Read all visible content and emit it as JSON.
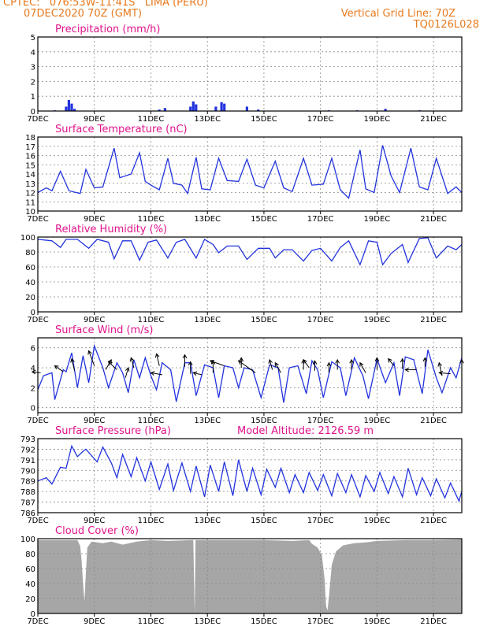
{
  "header": {
    "line1": "CPTEC:   076:53W-11:41S   LIMA (PERU)",
    "line2": "07DEC2020 70Z (GMT)",
    "right1": "Vertical Grid Line: 70Z",
    "right2": "TQ0126L028"
  },
  "colors": {
    "header": "#e87a1e",
    "title": "#e0148c",
    "series": "#2233dd",
    "cloud": "#a6a6a6",
    "grid": "#888888"
  },
  "date_ticks": [
    "7DEC",
    "9DEC",
    "11DEC",
    "13DEC",
    "15DEC",
    "17DEC",
    "19DEC",
    "21DEC"
  ],
  "chart_data": [
    {
      "id": "precip",
      "type": "bar",
      "title": "Precipitation (mm/h)",
      "x_unit": "days since 7DEC 70Z",
      "xlim": [
        0,
        15
      ],
      "ylim": [
        0,
        5
      ],
      "yticks": [
        "0",
        "1",
        "2",
        "3",
        "4",
        "5"
      ],
      "bars": [
        [
          0.6,
          0.05
        ],
        [
          1.0,
          0.3
        ],
        [
          1.1,
          0.75
        ],
        [
          1.2,
          0.5
        ],
        [
          1.3,
          0.15
        ],
        [
          4.3,
          0.1
        ],
        [
          4.5,
          0.2
        ],
        [
          5.4,
          0.3
        ],
        [
          5.5,
          0.65
        ],
        [
          5.6,
          0.45
        ],
        [
          6.3,
          0.3
        ],
        [
          6.5,
          0.6
        ],
        [
          6.6,
          0.5
        ],
        [
          7.4,
          0.3
        ],
        [
          7.8,
          0.1
        ],
        [
          10.3,
          0.05
        ],
        [
          11.3,
          0.05
        ],
        [
          12.3,
          0.15
        ],
        [
          13.5,
          0.05
        ]
      ]
    },
    {
      "id": "temp",
      "type": "line",
      "title": "Surface Temperature (nC)",
      "xlim": [
        0,
        15
      ],
      "ylim": [
        10,
        18
      ],
      "yticks": [
        "10",
        "11",
        "12",
        "13",
        "14",
        "15",
        "16",
        "17",
        "18"
      ],
      "points": [
        [
          0,
          12
        ],
        [
          0.3,
          12.5
        ],
        [
          0.5,
          12.2
        ],
        [
          0.8,
          14.3
        ],
        [
          1.1,
          12.2
        ],
        [
          1.5,
          11.9
        ],
        [
          1.7,
          14.5
        ],
        [
          2.0,
          12.5
        ],
        [
          2.3,
          12.6
        ],
        [
          2.7,
          16.8
        ],
        [
          2.9,
          13.6
        ],
        [
          3.3,
          14.0
        ],
        [
          3.6,
          16.3
        ],
        [
          3.8,
          13.2
        ],
        [
          4.0,
          12.8
        ],
        [
          4.3,
          12.3
        ],
        [
          4.6,
          15.7
        ],
        [
          4.8,
          13.0
        ],
        [
          5.1,
          12.8
        ],
        [
          5.3,
          11.9
        ],
        [
          5.6,
          15.8
        ],
        [
          5.8,
          12.4
        ],
        [
          6.1,
          12.3
        ],
        [
          6.4,
          15.7
        ],
        [
          6.7,
          13.3
        ],
        [
          7.1,
          13.2
        ],
        [
          7.4,
          15.6
        ],
        [
          7.7,
          12.8
        ],
        [
          8.0,
          12.5
        ],
        [
          8.4,
          15.4
        ],
        [
          8.7,
          12.5
        ],
        [
          9.0,
          12.1
        ],
        [
          9.4,
          15.7
        ],
        [
          9.7,
          12.8
        ],
        [
          10.1,
          12.9
        ],
        [
          10.4,
          15.7
        ],
        [
          10.7,
          12.3
        ],
        [
          11.0,
          11.4
        ],
        [
          11.4,
          16.6
        ],
        [
          11.6,
          12.4
        ],
        [
          11.9,
          12.0
        ],
        [
          12.2,
          17.1
        ],
        [
          12.5,
          13.8
        ],
        [
          12.8,
          12.0
        ],
        [
          13.2,
          16.8
        ],
        [
          13.5,
          12.6
        ],
        [
          13.8,
          12.3
        ],
        [
          14.1,
          15.7
        ],
        [
          14.5,
          11.9
        ],
        [
          14.8,
          12.6
        ],
        [
          15.0,
          12.0
        ]
      ]
    },
    {
      "id": "rh",
      "type": "line",
      "title": "Relative Humidity (%)",
      "xlim": [
        0,
        15
      ],
      "ylim": [
        0,
        100
      ],
      "yticks": [
        "0",
        "20",
        "40",
        "60",
        "80",
        "100"
      ],
      "points": [
        [
          0,
          97
        ],
        [
          0.5,
          95
        ],
        [
          0.8,
          86
        ],
        [
          1.0,
          97
        ],
        [
          1.4,
          97
        ],
        [
          1.8,
          85
        ],
        [
          2.1,
          97
        ],
        [
          2.5,
          93
        ],
        [
          2.7,
          71
        ],
        [
          3.0,
          95
        ],
        [
          3.3,
          95
        ],
        [
          3.6,
          69
        ],
        [
          3.9,
          93
        ],
        [
          4.2,
          96
        ],
        [
          4.6,
          72
        ],
        [
          4.9,
          93
        ],
        [
          5.2,
          97
        ],
        [
          5.6,
          72
        ],
        [
          5.9,
          97
        ],
        [
          6.2,
          90
        ],
        [
          6.4,
          79
        ],
        [
          6.7,
          88
        ],
        [
          7.1,
          88
        ],
        [
          7.4,
          70
        ],
        [
          7.8,
          85
        ],
        [
          8.2,
          85
        ],
        [
          8.4,
          72
        ],
        [
          8.7,
          83
        ],
        [
          9.0,
          83
        ],
        [
          9.4,
          68
        ],
        [
          9.7,
          82
        ],
        [
          10.0,
          85
        ],
        [
          10.4,
          68
        ],
        [
          10.7,
          86
        ],
        [
          11.0,
          95
        ],
        [
          11.4,
          63
        ],
        [
          11.7,
          95
        ],
        [
          12.0,
          93
        ],
        [
          12.2,
          63
        ],
        [
          12.5,
          78
        ],
        [
          12.9,
          90
        ],
        [
          13.1,
          66
        ],
        [
          13.5,
          98
        ],
        [
          13.8,
          99
        ],
        [
          14.1,
          72
        ],
        [
          14.5,
          88
        ],
        [
          14.8,
          83
        ],
        [
          15.0,
          90
        ]
      ]
    },
    {
      "id": "wind",
      "type": "line",
      "title": "Surface Wind (m/s)",
      "xlim": [
        0,
        15
      ],
      "ylim": [
        -0.5,
        7
      ],
      "yticks": [
        "0",
        "2",
        "4",
        "6"
      ],
      "points": [
        [
          0,
          1.8
        ],
        [
          0.2,
          3.2
        ],
        [
          0.5,
          3.5
        ],
        [
          0.6,
          0.8
        ],
        [
          0.9,
          3.8
        ],
        [
          1.0,
          3.6
        ],
        [
          1.2,
          5.5
        ],
        [
          1.4,
          2.0
        ],
        [
          1.6,
          5.2
        ],
        [
          1.8,
          2.5
        ],
        [
          2.0,
          6.2
        ],
        [
          2.3,
          4.0
        ],
        [
          2.5,
          2.0
        ],
        [
          2.8,
          4.5
        ],
        [
          3.0,
          3.5
        ],
        [
          3.2,
          1.5
        ],
        [
          3.4,
          4.8
        ],
        [
          3.6,
          3.0
        ],
        [
          3.8,
          5.0
        ],
        [
          4.0,
          3.2
        ],
        [
          4.2,
          1.8
        ],
        [
          4.4,
          4.5
        ],
        [
          4.7,
          3.8
        ],
        [
          4.9,
          0.6
        ],
        [
          5.2,
          4.5
        ],
        [
          5.4,
          4.5
        ],
        [
          5.6,
          1.2
        ],
        [
          5.9,
          4.3
        ],
        [
          6.2,
          4.0
        ],
        [
          6.4,
          1.0
        ],
        [
          6.6,
          4.2
        ],
        [
          6.9,
          4.0
        ],
        [
          7.1,
          2.0
        ],
        [
          7.3,
          4.0
        ],
        [
          7.6,
          3.8
        ],
        [
          7.9,
          1.0
        ],
        [
          8.2,
          4.3
        ],
        [
          8.5,
          4.0
        ],
        [
          8.7,
          0.5
        ],
        [
          8.9,
          4.0
        ],
        [
          9.2,
          4.2
        ],
        [
          9.5,
          1.4
        ],
        [
          9.7,
          4.7
        ],
        [
          9.9,
          3.8
        ],
        [
          10.1,
          1.0
        ],
        [
          10.4,
          4.6
        ],
        [
          10.7,
          4.0
        ],
        [
          10.9,
          1.2
        ],
        [
          11.2,
          5.0
        ],
        [
          11.5,
          3.2
        ],
        [
          11.7,
          0.9
        ],
        [
          12.0,
          4.9
        ],
        [
          12.3,
          2.5
        ],
        [
          12.6,
          4.5
        ],
        [
          12.8,
          1.2
        ],
        [
          13.0,
          5.1
        ],
        [
          13.3,
          4.8
        ],
        [
          13.6,
          1.4
        ],
        [
          13.8,
          5.8
        ],
        [
          14.1,
          3.0
        ],
        [
          14.3,
          1.5
        ],
        [
          14.6,
          4.0
        ],
        [
          14.8,
          3.0
        ],
        [
          15.0,
          5.0
        ]
      ],
      "arrows": [
        [
          0.1,
          3.5,
          -0.3,
          0.1
        ],
        [
          0.9,
          3.6,
          -0.3,
          0.6
        ],
        [
          1.3,
          3.7,
          -0.1,
          1.2
        ],
        [
          2.0,
          4.2,
          -0.2,
          1.5
        ],
        [
          2.4,
          3.8,
          0.2,
          1.0
        ],
        [
          2.8,
          3.8,
          -0.3,
          0.8
        ],
        [
          3.1,
          3.0,
          0.1,
          1.0
        ],
        [
          3.4,
          4.0,
          -0.1,
          1.0
        ],
        [
          4.4,
          3.3,
          -0.4,
          0.2
        ],
        [
          4.3,
          4.2,
          -0.1,
          1.2
        ],
        [
          5.2,
          4.1,
          0.0,
          1.2
        ],
        [
          5.4,
          3.4,
          0.0,
          1.2
        ],
        [
          5.8,
          3.3,
          -0.3,
          0.2
        ],
        [
          6.2,
          3.5,
          0.0,
          1.2
        ],
        [
          6.6,
          4.2,
          -0.5,
          0.5
        ],
        [
          7.2,
          4.0,
          0.0,
          1.0
        ],
        [
          7.7,
          3.5,
          -0.6,
          1.2
        ],
        [
          8.3,
          3.8,
          -0.1,
          1.0
        ],
        [
          8.6,
          3.5,
          -0.2,
          1.0
        ],
        [
          9.4,
          3.8,
          0.0,
          1.0
        ],
        [
          9.6,
          4.0,
          -0.2,
          0.8
        ],
        [
          9.8,
          3.7,
          0.0,
          1.0
        ],
        [
          10.3,
          3.5,
          0.0,
          1.0
        ],
        [
          10.6,
          3.8,
          0.0,
          1.0
        ],
        [
          11.1,
          3.8,
          0.0,
          1.0
        ],
        [
          11.6,
          3.5,
          -0.2,
          1.0
        ],
        [
          12.0,
          3.8,
          0.0,
          1.2
        ],
        [
          12.6,
          4.2,
          -0.2,
          0.7
        ],
        [
          12.9,
          3.9,
          0.0,
          1.0
        ],
        [
          13.4,
          3.8,
          -0.4,
          0.0
        ],
        [
          13.7,
          4.1,
          0.0,
          0.9
        ],
        [
          14.3,
          3.2,
          -0.1,
          1.3
        ],
        [
          14.6,
          3.4,
          -0.4,
          0.1
        ],
        [
          15.0,
          3.8,
          0.0,
          1.0
        ]
      ]
    },
    {
      "id": "pres",
      "type": "line",
      "title": "Surface Pressure (hPa)",
      "note": "Model Altitude: 2126.59 m",
      "xlim": [
        0,
        15
      ],
      "ylim": [
        786,
        793
      ],
      "yticks": [
        "786",
        "787",
        "788",
        "789",
        "790",
        "791",
        "792",
        "793"
      ],
      "points": [
        [
          0,
          789.0
        ],
        [
          0.3,
          789.3
        ],
        [
          0.5,
          788.7
        ],
        [
          0.8,
          790.3
        ],
        [
          1.0,
          790.2
        ],
        [
          1.2,
          792.3
        ],
        [
          1.4,
          791.3
        ],
        [
          1.6,
          791.8
        ],
        [
          1.7,
          792.0
        ],
        [
          1.9,
          791.4
        ],
        [
          2.1,
          790.8
        ],
        [
          2.3,
          792.2
        ],
        [
          2.6,
          790.7
        ],
        [
          2.8,
          789.3
        ],
        [
          3.0,
          791.5
        ],
        [
          3.3,
          789.4
        ],
        [
          3.5,
          791.2
        ],
        [
          3.8,
          789.0
        ],
        [
          4.0,
          790.8
        ],
        [
          4.3,
          788.2
        ],
        [
          4.6,
          790.6
        ],
        [
          4.8,
          788.1
        ],
        [
          5.1,
          790.7
        ],
        [
          5.4,
          788.0
        ],
        [
          5.6,
          790.4
        ],
        [
          5.9,
          787.5
        ],
        [
          6.1,
          790.5
        ],
        [
          6.4,
          788.0
        ],
        [
          6.6,
          790.8
        ],
        [
          6.9,
          787.6
        ],
        [
          7.1,
          791.0
        ],
        [
          7.4,
          788.0
        ],
        [
          7.6,
          790.2
        ],
        [
          7.9,
          787.7
        ],
        [
          8.1,
          790.1
        ],
        [
          8.4,
          788.4
        ],
        [
          8.6,
          790.2
        ],
        [
          8.9,
          787.9
        ],
        [
          9.1,
          789.6
        ],
        [
          9.4,
          787.9
        ],
        [
          9.6,
          789.8
        ],
        [
          9.9,
          788.1
        ],
        [
          10.1,
          789.6
        ],
        [
          10.4,
          787.6
        ],
        [
          10.6,
          789.7
        ],
        [
          10.9,
          787.9
        ],
        [
          11.1,
          789.6
        ],
        [
          11.4,
          787.5
        ],
        [
          11.6,
          789.5
        ],
        [
          11.9,
          788.0
        ],
        [
          12.1,
          789.8
        ],
        [
          12.4,
          787.8
        ],
        [
          12.6,
          789.4
        ],
        [
          12.9,
          787.5
        ],
        [
          13.1,
          790.2
        ],
        [
          13.4,
          787.7
        ],
        [
          13.6,
          789.3
        ],
        [
          13.9,
          787.6
        ],
        [
          14.1,
          789.2
        ],
        [
          14.4,
          787.4
        ],
        [
          14.6,
          788.8
        ],
        [
          14.9,
          787.1
        ],
        [
          15.0,
          788.0
        ]
      ]
    },
    {
      "id": "cloud",
      "type": "area",
      "title": "Cloud Cover (%)",
      "xlim": [
        0,
        15
      ],
      "ylim": [
        0,
        100
      ],
      "yticks": [
        "0",
        "20",
        "40",
        "60",
        "80",
        "100"
      ],
      "points": [
        [
          0,
          98
        ],
        [
          1.4,
          98
        ],
        [
          1.5,
          90
        ],
        [
          1.55,
          70
        ],
        [
          1.6,
          40
        ],
        [
          1.65,
          16
        ],
        [
          1.7,
          55
        ],
        [
          1.75,
          88
        ],
        [
          1.9,
          96
        ],
        [
          2.3,
          94
        ],
        [
          2.6,
          96
        ],
        [
          3.0,
          92
        ],
        [
          3.5,
          96
        ],
        [
          4.0,
          98
        ],
        [
          4.6,
          97
        ],
        [
          5.4,
          98
        ],
        [
          5.5,
          98
        ],
        [
          5.55,
          0
        ],
        [
          5.58,
          98
        ],
        [
          6.0,
          98
        ],
        [
          7.0,
          98
        ],
        [
          8.0,
          98
        ],
        [
          9.0,
          97
        ],
        [
          9.6,
          98
        ],
        [
          9.7,
          93
        ],
        [
          9.9,
          88
        ],
        [
          10.05,
          78
        ],
        [
          10.15,
          45
        ],
        [
          10.2,
          10
        ],
        [
          10.25,
          4
        ],
        [
          10.32,
          30
        ],
        [
          10.4,
          65
        ],
        [
          10.55,
          83
        ],
        [
          10.8,
          91
        ],
        [
          11.2,
          94
        ],
        [
          11.6,
          95
        ],
        [
          12.0,
          97
        ],
        [
          13.0,
          98
        ],
        [
          14.0,
          98
        ],
        [
          15.0,
          99
        ]
      ]
    }
  ]
}
